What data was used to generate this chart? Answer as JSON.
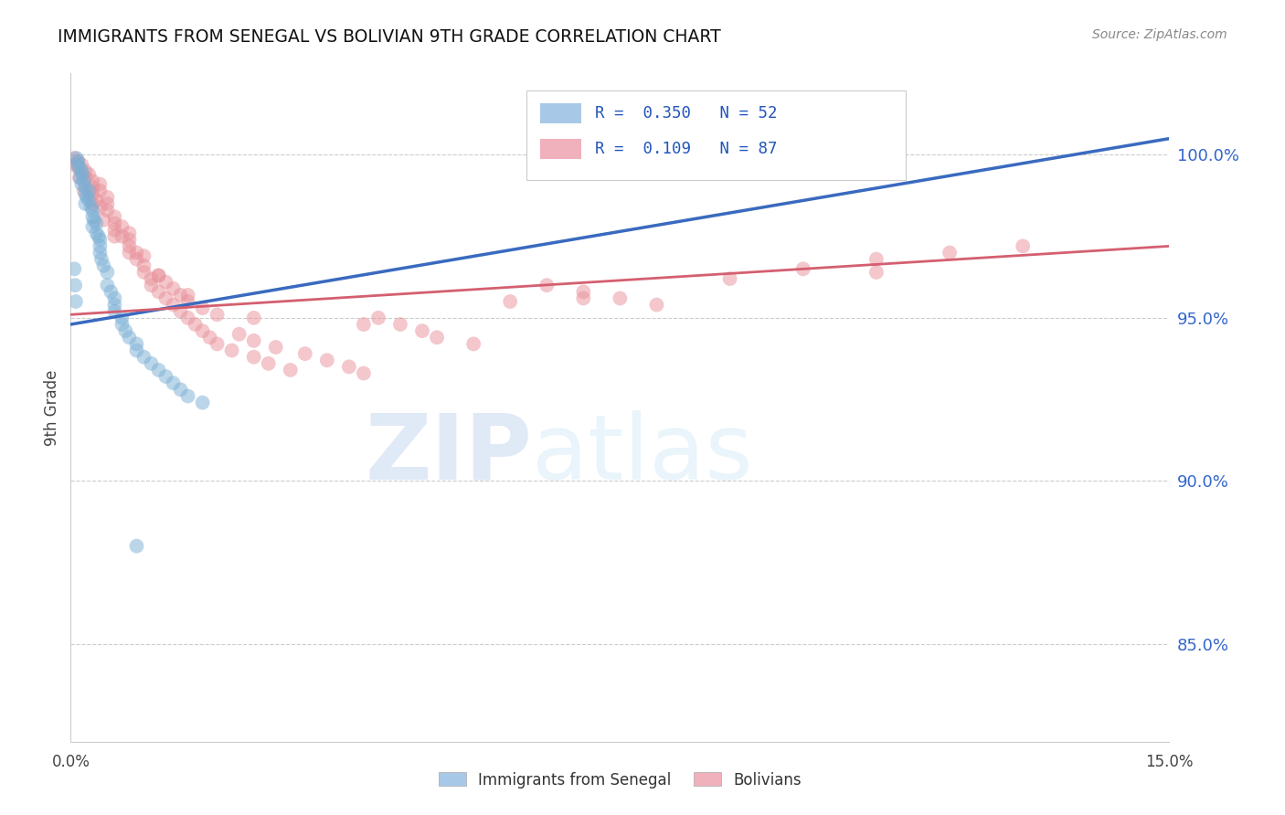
{
  "title": "IMMIGRANTS FROM SENEGAL VS BOLIVIAN 9TH GRADE CORRELATION CHART",
  "source": "Source: ZipAtlas.com",
  "ylabel": "9th Grade",
  "xlim": [
    0.0,
    0.15
  ],
  "ylim": [
    0.82,
    1.025
  ],
  "y_ticks": [
    0.85,
    0.9,
    0.95,
    1.0
  ],
  "y_tick_labels": [
    "85.0%",
    "90.0%",
    "95.0%",
    "100.0%"
  ],
  "senegal_R": 0.35,
  "senegal_N": 52,
  "bolivia_R": 0.109,
  "bolivia_N": 87,
  "senegal_color": "#7bafd4",
  "bolivia_color": "#e8909a",
  "senegal_line_color": "#3a6abf",
  "bolivia_line_color": "#d45f70",
  "legend_senegal_color": "#a8c8e8",
  "legend_bolivia_color": "#f0b0bc",
  "senegal_x": [
    0.0008,
    0.001,
    0.001,
    0.0012,
    0.0013,
    0.0015,
    0.0015,
    0.0016,
    0.0018,
    0.002,
    0.002,
    0.002,
    0.0022,
    0.0025,
    0.0025,
    0.0028,
    0.003,
    0.003,
    0.003,
    0.0032,
    0.0035,
    0.0035,
    0.0038,
    0.004,
    0.004,
    0.004,
    0.0042,
    0.0045,
    0.005,
    0.005,
    0.0055,
    0.006,
    0.006,
    0.006,
    0.007,
    0.007,
    0.0075,
    0.008,
    0.009,
    0.009,
    0.01,
    0.011,
    0.012,
    0.013,
    0.014,
    0.015,
    0.016,
    0.018,
    0.0005,
    0.0006,
    0.0007,
    0.009
  ],
  "senegal_y": [
    0.999,
    0.998,
    0.997,
    0.996,
    0.993,
    0.995,
    0.991,
    0.994,
    0.992,
    0.99,
    0.988,
    0.985,
    0.987,
    0.989,
    0.986,
    0.984,
    0.983,
    0.981,
    0.978,
    0.98,
    0.979,
    0.976,
    0.975,
    0.974,
    0.972,
    0.97,
    0.968,
    0.966,
    0.964,
    0.96,
    0.958,
    0.956,
    0.954,
    0.952,
    0.95,
    0.948,
    0.946,
    0.944,
    0.942,
    0.94,
    0.938,
    0.936,
    0.934,
    0.932,
    0.93,
    0.928,
    0.926,
    0.924,
    0.965,
    0.96,
    0.955,
    0.88
  ],
  "bolivia_x": [
    0.0005,
    0.001,
    0.001,
    0.0015,
    0.002,
    0.002,
    0.0025,
    0.003,
    0.003,
    0.003,
    0.0035,
    0.004,
    0.004,
    0.004,
    0.005,
    0.005,
    0.005,
    0.006,
    0.006,
    0.006,
    0.007,
    0.007,
    0.008,
    0.008,
    0.008,
    0.009,
    0.009,
    0.01,
    0.01,
    0.01,
    0.011,
    0.011,
    0.012,
    0.012,
    0.013,
    0.013,
    0.014,
    0.014,
    0.015,
    0.015,
    0.016,
    0.016,
    0.017,
    0.018,
    0.018,
    0.019,
    0.02,
    0.02,
    0.022,
    0.023,
    0.025,
    0.025,
    0.027,
    0.028,
    0.03,
    0.032,
    0.035,
    0.038,
    0.04,
    0.042,
    0.045,
    0.048,
    0.05,
    0.055,
    0.06,
    0.065,
    0.07,
    0.075,
    0.08,
    0.09,
    0.1,
    0.11,
    0.12,
    0.0008,
    0.0012,
    0.0018,
    0.003,
    0.0045,
    0.006,
    0.008,
    0.012,
    0.016,
    0.025,
    0.04,
    0.07,
    0.11,
    0.13
  ],
  "bolivia_y": [
    0.999,
    0.998,
    0.996,
    0.997,
    0.995,
    0.993,
    0.994,
    0.992,
    0.99,
    0.988,
    0.986,
    0.991,
    0.984,
    0.989,
    0.987,
    0.983,
    0.985,
    0.981,
    0.979,
    0.977,
    0.975,
    0.978,
    0.976,
    0.974,
    0.972,
    0.97,
    0.968,
    0.966,
    0.964,
    0.969,
    0.962,
    0.96,
    0.958,
    0.963,
    0.956,
    0.961,
    0.954,
    0.959,
    0.952,
    0.957,
    0.95,
    0.955,
    0.948,
    0.946,
    0.953,
    0.944,
    0.942,
    0.951,
    0.94,
    0.945,
    0.938,
    0.943,
    0.936,
    0.941,
    0.934,
    0.939,
    0.937,
    0.935,
    0.933,
    0.95,
    0.948,
    0.946,
    0.944,
    0.942,
    0.955,
    0.96,
    0.958,
    0.956,
    0.954,
    0.962,
    0.965,
    0.968,
    0.97,
    0.997,
    0.993,
    0.989,
    0.985,
    0.98,
    0.975,
    0.97,
    0.963,
    0.957,
    0.95,
    0.948,
    0.956,
    0.964,
    0.972
  ],
  "watermark_zip": "ZIP",
  "watermark_atlas": "atlas",
  "senegal_line_x": [
    0.0,
    0.15
  ],
  "senegal_line_y": [
    0.948,
    1.005
  ],
  "bolivia_line_x": [
    0.0,
    0.15
  ],
  "bolivia_line_y": [
    0.951,
    0.972
  ]
}
